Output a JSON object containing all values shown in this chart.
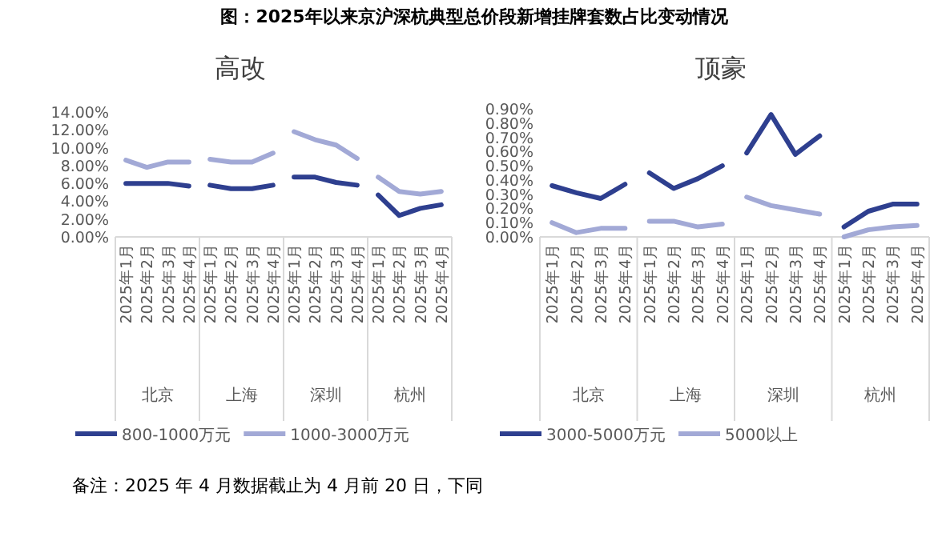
{
  "chart_data": [
    {
      "type": "other",
      "title": "图：2025年以来京沪深杭典型总价段新增挂牌套数占比变动情况",
      "annotations": [
        "备注：2025 年 4 月数据截止为 4 月前 20 日，下同"
      ]
    },
    {
      "type": "line",
      "title": "高改",
      "categories": [
        "2025年1月",
        "2025年2月",
        "2025年3月",
        "2025年4月",
        "2025年1月",
        "2025年2月",
        "2025年3月",
        "2025年4月",
        "2025年1月",
        "2025年2月",
        "2025年3月",
        "2025年4月",
        "2025年1月",
        "2025年2月",
        "2025年3月",
        "2025年4月"
      ],
      "annotations": [
        "北京",
        "上海",
        "深圳",
        "杭州"
      ],
      "series": [
        {
          "name": "800-1000万元",
          "color": "#2e3f8f",
          "values": [
            6.0,
            6.0,
            6.0,
            5.7,
            5.8,
            5.4,
            5.4,
            5.8,
            6.7,
            6.7,
            6.1,
            5.8,
            4.7,
            2.4,
            3.2,
            3.6
          ]
        },
        {
          "name": "1000-3000万元",
          "color": "#a2a9d6",
          "values": [
            8.6,
            7.8,
            8.4,
            8.4,
            8.7,
            8.4,
            8.4,
            9.4,
            11.8,
            10.9,
            10.3,
            8.8,
            6.7,
            5.1,
            4.8,
            5.1
          ]
        }
      ],
      "ylim": [
        0,
        14
      ],
      "yticks": [
        {
          "value": 0,
          "label": "0.00%"
        },
        {
          "value": 2,
          "label": "2.00%"
        },
        {
          "value": 4,
          "label": "4.00%"
        },
        {
          "value": 6,
          "label": "6.00%"
        },
        {
          "value": 8,
          "label": "8.00%"
        },
        {
          "value": 10,
          "label": "10.00%"
        },
        {
          "value": 12,
          "label": "12.00%"
        },
        {
          "value": 14,
          "label": "14.00%"
        }
      ],
      "legend": "bottom",
      "grid": false
    },
    {
      "type": "line",
      "title": "顶豪",
      "categories": [
        "2025年1月",
        "2025年2月",
        "2025年3月",
        "2025年4月",
        "2025年1月",
        "2025年2月",
        "2025年3月",
        "2025年4月",
        "2025年1月",
        "2025年2月",
        "2025年3月",
        "2025年4月",
        "2025年1月",
        "2025年2月",
        "2025年3月",
        "2025年4月"
      ],
      "annotations": [
        "北京",
        "上海",
        "深圳",
        "杭州"
      ],
      "series": [
        {
          "name": "3000-5000万元",
          "color": "#2e3f8f",
          "values": [
            0.36,
            0.31,
            0.27,
            0.37,
            0.45,
            0.34,
            0.41,
            0.5,
            0.59,
            0.86,
            0.58,
            0.71,
            0.07,
            0.18,
            0.23,
            0.23
          ]
        },
        {
          "name": "5000以上",
          "color": "#a2a9d6",
          "values": [
            0.1,
            0.03,
            0.06,
            0.06,
            0.11,
            0.11,
            0.07,
            0.09,
            0.28,
            0.22,
            0.19,
            0.16,
            0.0,
            0.05,
            0.07,
            0.08
          ]
        }
      ],
      "ylim": [
        0,
        0.9
      ],
      "yticks": [
        {
          "value": 0,
          "label": "0.00%"
        },
        {
          "value": 0.1,
          "label": "0.10%"
        },
        {
          "value": 0.2,
          "label": "0.20%"
        },
        {
          "value": 0.3,
          "label": "0.30%"
        },
        {
          "value": 0.4,
          "label": "0.40%"
        },
        {
          "value": 0.5,
          "label": "0.50%"
        },
        {
          "value": 0.6,
          "label": "0.60%"
        },
        {
          "value": 0.7,
          "label": "0.70%"
        },
        {
          "value": 0.8,
          "label": "0.80%"
        },
        {
          "value": 0.9,
          "label": "0.90%"
        }
      ],
      "legend": "bottom",
      "grid": false
    }
  ]
}
